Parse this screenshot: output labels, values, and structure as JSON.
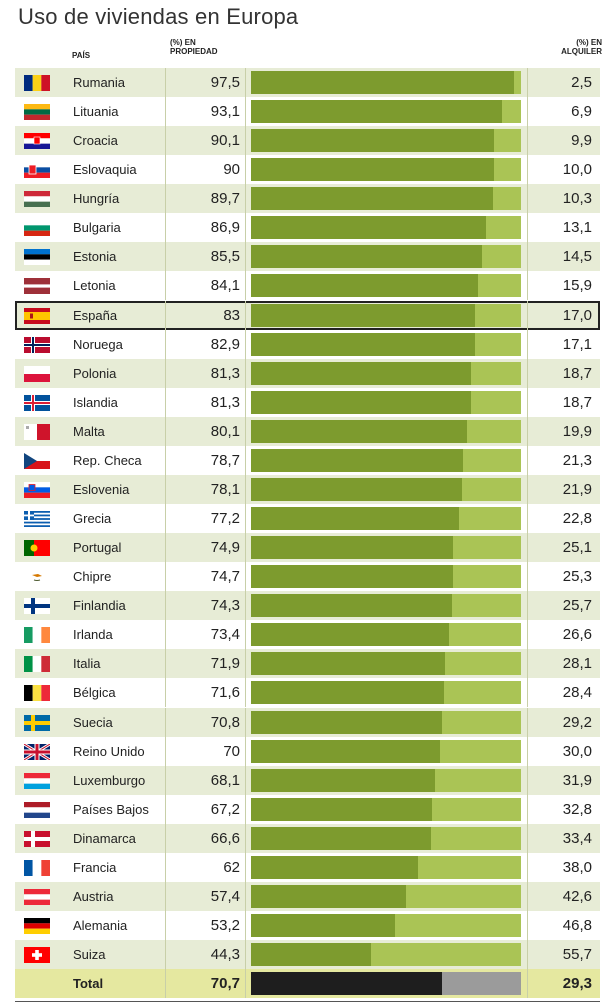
{
  "chart_data": {
    "type": "bar",
    "title": "Uso de viviendas en Europa",
    "columns": {
      "country": "PAÍS",
      "owned": [
        "(%) EN",
        "PROPIEDAD"
      ],
      "rented": [
        "(%) EN",
        "ALQUILER"
      ]
    },
    "xlim": [
      0,
      100
    ],
    "highlight": "España",
    "colors": {
      "owned": "#7d9b2e",
      "rented": "#aac455",
      "total_owned": "#1e1e1e",
      "total_rented": "#9b9b9b"
    },
    "rows": [
      {
        "country": "Rumania",
        "flag": "romania-flag-icon",
        "owned": "97,5",
        "rented": "2,5",
        "v": 97.5
      },
      {
        "country": "Lituania",
        "flag": "lithuania-flag-icon",
        "owned": "93,1",
        "rented": "6,9",
        "v": 93.1
      },
      {
        "country": "Croacia",
        "flag": "croatia-flag-icon",
        "owned": "90,1",
        "rented": "9,9",
        "v": 90.1
      },
      {
        "country": "Eslovaquia",
        "flag": "slovakia-flag-icon",
        "owned": "90",
        "rented": "10,0",
        "v": 90
      },
      {
        "country": "Hungría",
        "flag": "hungary-flag-icon",
        "owned": "89,7",
        "rented": "10,3",
        "v": 89.7
      },
      {
        "country": "Bulgaria",
        "flag": "bulgaria-flag-icon",
        "owned": "86,9",
        "rented": "13,1",
        "v": 86.9
      },
      {
        "country": "Estonia",
        "flag": "estonia-flag-icon",
        "owned": "85,5",
        "rented": "14,5",
        "v": 85.5
      },
      {
        "country": "Letonia",
        "flag": "latvia-flag-icon",
        "owned": "84,1",
        "rented": "15,9",
        "v": 84.1
      },
      {
        "country": "España",
        "flag": "spain-flag-icon",
        "owned": "83",
        "rented": "17,0",
        "v": 83
      },
      {
        "country": "Noruega",
        "flag": "norway-flag-icon",
        "owned": "82,9",
        "rented": "17,1",
        "v": 82.9
      },
      {
        "country": "Polonia",
        "flag": "poland-flag-icon",
        "owned": "81,3",
        "rented": "18,7",
        "v": 81.3
      },
      {
        "country": "Islandia",
        "flag": "iceland-flag-icon",
        "owned": "81,3",
        "rented": "18,7",
        "v": 81.3
      },
      {
        "country": "Malta",
        "flag": "malta-flag-icon",
        "owned": "80,1",
        "rented": "19,9",
        "v": 80.1
      },
      {
        "country": "Rep. Checa",
        "flag": "czech-flag-icon",
        "owned": "78,7",
        "rented": "21,3",
        "v": 78.7
      },
      {
        "country": "Eslovenia",
        "flag": "slovenia-flag-icon",
        "owned": "78,1",
        "rented": "21,9",
        "v": 78.1
      },
      {
        "country": "Grecia",
        "flag": "greece-flag-icon",
        "owned": "77,2",
        "rented": "22,8",
        "v": 77.2
      },
      {
        "country": "Portugal",
        "flag": "portugal-flag-icon",
        "owned": "74,9",
        "rented": "25,1",
        "v": 74.9
      },
      {
        "country": "Chipre",
        "flag": "cyprus-flag-icon",
        "owned": "74,7",
        "rented": "25,3",
        "v": 74.7
      },
      {
        "country": "Finlandia",
        "flag": "finland-flag-icon",
        "owned": "74,3",
        "rented": "25,7",
        "v": 74.3
      },
      {
        "country": "Irlanda",
        "flag": "ireland-flag-icon",
        "owned": "73,4",
        "rented": "26,6",
        "v": 73.4
      },
      {
        "country": "Italia",
        "flag": "italy-flag-icon",
        "owned": "71,9",
        "rented": "28,1",
        "v": 71.9
      },
      {
        "country": "Bélgica",
        "flag": "belgium-flag-icon",
        "owned": "71,6",
        "rented": "28,4",
        "v": 71.6
      },
      {
        "country": "Suecia",
        "flag": "sweden-flag-icon",
        "owned": "70,8",
        "rented": "29,2",
        "v": 70.8
      },
      {
        "country": "Reino Unido",
        "flag": "uk-flag-icon",
        "owned": "70",
        "rented": "30,0",
        "v": 70
      },
      {
        "country": "Luxemburgo",
        "flag": "luxembourg-flag-icon",
        "owned": "68,1",
        "rented": "31,9",
        "v": 68.1
      },
      {
        "country": "Países Bajos",
        "flag": "netherlands-flag-icon",
        "owned": "67,2",
        "rented": "32,8",
        "v": 67.2
      },
      {
        "country": "Dinamarca",
        "flag": "denmark-flag-icon",
        "owned": "66,6",
        "rented": "33,4",
        "v": 66.6
      },
      {
        "country": "Francia",
        "flag": "france-flag-icon",
        "owned": "62",
        "rented": "38,0",
        "v": 62
      },
      {
        "country": "Austria",
        "flag": "austria-flag-icon",
        "owned": "57,4",
        "rented": "42,6",
        "v": 57.4
      },
      {
        "country": "Alemania",
        "flag": "germany-flag-icon",
        "owned": "53,2",
        "rented": "46,8",
        "v": 53.2
      },
      {
        "country": "Suiza",
        "flag": "switzerland-flag-icon",
        "owned": "44,3",
        "rented": "55,7",
        "v": 44.3
      }
    ],
    "total": {
      "country": "Total",
      "owned": "70,7",
      "rented": "29,3",
      "v": 70.7
    }
  }
}
